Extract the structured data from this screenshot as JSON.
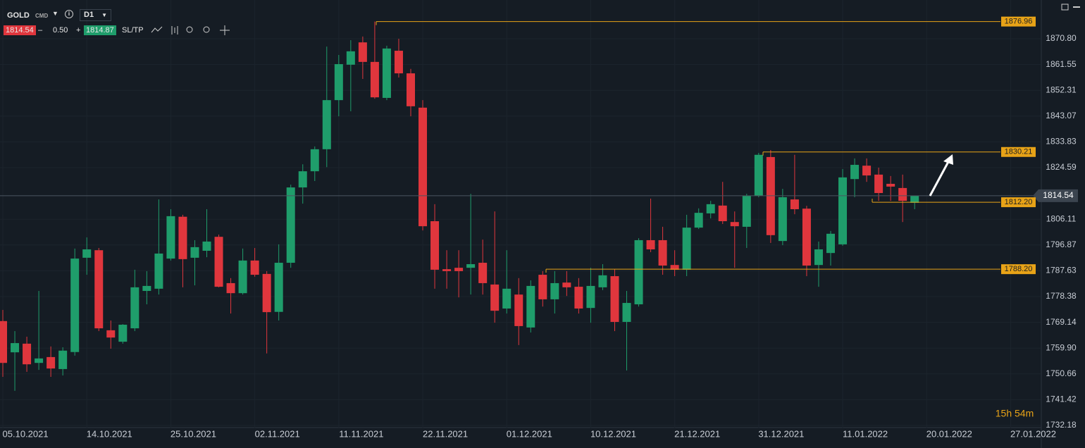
{
  "toolbar": {
    "symbol": "GOLD",
    "market": "CMD",
    "timeframe": "D1",
    "bid": "1814.54",
    "spread": "0.50",
    "ask": "1814.87",
    "minus": "–",
    "plus": "+",
    "sltp": "SL/TP"
  },
  "chart_data": {
    "type": "candlestick",
    "categories": [
      null,
      null,
      "05.10.2021",
      null,
      null,
      null,
      null,
      null,
      null,
      "14.10.2021",
      null,
      null,
      null,
      null,
      null,
      null,
      "25.10.2021",
      null,
      null,
      null,
      null,
      null,
      null,
      "02.11.2021",
      null,
      null,
      null,
      null,
      null,
      null,
      "11.11.2021",
      null,
      null,
      null,
      null,
      null,
      null,
      "22.11.2021",
      null,
      null,
      null,
      null,
      null,
      null,
      "01.12.2021",
      null,
      null,
      null,
      null,
      null,
      null,
      "10.12.2021",
      null,
      null,
      null,
      null,
      null,
      null,
      "21.12.2021",
      null,
      null,
      null,
      null,
      null,
      null,
      "31.12.2021",
      null,
      null,
      null,
      null,
      null,
      null,
      "11.01.2022",
      null,
      null,
      null,
      null,
      null,
      null,
      "20.01.2022",
      null,
      null,
      null,
      null,
      null,
      null,
      "27.01.2022"
    ],
    "open": [
      1769.6,
      1758.4,
      1761.5,
      1754.6,
      1756.7,
      1752.4,
      1758.5,
      1792.3,
      1795.0,
      1766.3,
      1762.2,
      1767.0,
      1780.4,
      1781.2,
      1792.0,
      1807.0,
      1792.3,
      1794.8,
      1799.8,
      1783.2,
      1779.6,
      1791.3,
      1786.5,
      1772.9,
      1790.5,
      1817.5,
      1823.3,
      1831.2,
      1848.8,
      1861.5,
      1869.5,
      1862.5,
      1849.6,
      1866.5,
      1858.4,
      1846.1,
      1805.4,
      1788.2,
      1788.7,
      1788.7,
      1790.5,
      1782.7,
      1774.1,
      1779.1,
      1767.3,
      1786.2,
      1777.4,
      1783.4,
      1781.9,
      1774.3,
      1781.7,
      1785.7,
      1769.3,
      1775.6,
      1798.6,
      1798.6,
      1789.7,
      1788.0,
      1803.1,
      1808.2,
      1811.0,
      1805.1,
      1803.4,
      1814.5,
      1828.4,
      1798.3,
      1813.2,
      1809.9,
      1789.7,
      1794.0,
      1797.1,
      1820.5,
      1825.3,
      1822.1,
      1818.8,
      1817.3,
      1812.0,
      null,
      null,
      null,
      null,
      null,
      null,
      null,
      null,
      null,
      null
    ],
    "high": [
      1773.6,
      1766.0,
      1764.0,
      1780.4,
      1760.5,
      1760.2,
      1795.6,
      1799.6,
      1795.8,
      1769.8,
      1768.5,
      1788.0,
      1787.5,
      1813.2,
      1809.7,
      1807.7,
      1798.6,
      1809.7,
      1800.6,
      1785.0,
      1795.6,
      1795.8,
      1787.5,
      1797.1,
      1818.5,
      1825.8,
      1832.2,
      1868.0,
      1865.0,
      1870.3,
      1871.6,
      1876.96,
      1868.3,
      1870.8,
      1860.0,
      1848.8,
      1811.5,
      1795.0,
      1795.0,
      1815.2,
      1798.8,
      1808.9,
      1795.0,
      1785.0,
      1784.2,
      1787.5,
      1787.5,
      1787.5,
      1785.0,
      1788.7,
      1790.0,
      1788.2,
      1780.4,
      1799.3,
      1813.5,
      1803.4,
      1795.0,
      1807.7,
      1810.0,
      1812.7,
      1819.5,
      1808.9,
      1815.2,
      1829.9,
      1830.9,
      1817.0,
      1829.2,
      1810.9,
      1798.1,
      1801.9,
      1824.1,
      1827.9,
      1827.9,
      1824.6,
      1821.6,
      1822.1,
      1814.5,
      null,
      null,
      null,
      null,
      null,
      null,
      null,
      null,
      null,
      null
    ],
    "low": [
      1749.6,
      1744.6,
      1751.4,
      1752.1,
      1749.6,
      1750.1,
      1757.2,
      1786.2,
      1766.0,
      1759.7,
      1761.5,
      1766.0,
      1775.6,
      1779.1,
      1791.3,
      1781.7,
      1782.4,
      1792.5,
      1781.7,
      1772.3,
      1779.1,
      1785.5,
      1758.0,
      1769.8,
      1788.7,
      1811.7,
      1819.8,
      1824.8,
      1843.0,
      1844.8,
      1856.4,
      1849.3,
      1848.8,
      1856.9,
      1843.0,
      1802.1,
      1781.2,
      1781.2,
      1778.1,
      1779.1,
      1779.1,
      1769.0,
      1772.3,
      1761.0,
      1765.5,
      1774.8,
      1772.3,
      1778.6,
      1772.3,
      1769.0,
      1780.7,
      1766.0,
      1751.9,
      1774.8,
      1794.3,
      1786.2,
      1785.7,
      1785.7,
      1802.6,
      1806.4,
      1804.4,
      1788.7,
      1795.8,
      1814.0,
      1797.6,
      1796.8,
      1807.9,
      1785.7,
      1781.9,
      1789.5,
      1796.6,
      1814.0,
      1819.5,
      1812.7,
      1812.7,
      1805.1,
      1809.7,
      null,
      null,
      null,
      null,
      null,
      null,
      null,
      null,
      null,
      null
    ],
    "close": [
      1754.6,
      1761.7,
      1754.1,
      1756.2,
      1752.6,
      1759.0,
      1792.0,
      1795.3,
      1767.0,
      1763.7,
      1768.3,
      1781.7,
      1782.2,
      1793.8,
      1807.2,
      1791.8,
      1796.1,
      1798.1,
      1781.9,
      1779.6,
      1791.3,
      1786.2,
      1772.8,
      1790.5,
      1817.5,
      1823.3,
      1831.2,
      1848.8,
      1861.7,
      1866.3,
      1862.5,
      1849.8,
      1867.3,
      1858.4,
      1846.6,
      1803.6,
      1788.0,
      1787.5,
      1787.5,
      1790.0,
      1783.2,
      1773.3,
      1781.2,
      1767.8,
      1782.2,
      1777.4,
      1783.2,
      1781.7,
      1774.1,
      1782.2,
      1786.0,
      1769.3,
      1776.1,
      1798.6,
      1795.3,
      1789.5,
      1788.0,
      1803.1,
      1808.4,
      1811.5,
      1805.4,
      1803.6,
      1814.5,
      1829.2,
      1800.4,
      1814.0,
      1809.7,
      1789.5,
      1795.3,
      1800.9,
      1821.1,
      1825.6,
      1821.8,
      1815.5,
      1817.8,
      1812.7,
      1814.5,
      null,
      null,
      null,
      null,
      null,
      null,
      null,
      null,
      null,
      null
    ],
    "up_color": "#1f9d6b",
    "down_color": "#e0363d",
    "ylim": [
      1731.17,
      1884.69
    ],
    "yticks": [
      {
        "value": 1870.8,
        "label": "1870.80"
      },
      {
        "value": 1861.55,
        "label": "1861.55"
      },
      {
        "value": 1852.31,
        "label": "1852.31"
      },
      {
        "value": 1843.07,
        "label": "1843.07"
      },
      {
        "value": 1833.83,
        "label": "1833.83"
      },
      {
        "value": 1824.59,
        "label": "1824.59"
      },
      {
        "value": 1806.11,
        "label": "1806.11"
      },
      {
        "value": 1796.87,
        "label": "1796.87"
      },
      {
        "value": 1787.63,
        "label": "1787.63"
      },
      {
        "value": 1778.38,
        "label": "1778.38"
      },
      {
        "value": 1769.14,
        "label": "1769.14"
      },
      {
        "value": 1759.9,
        "label": "1759.90"
      },
      {
        "value": 1750.66,
        "label": "1750.66"
      },
      {
        "value": 1741.42,
        "label": "1741.42"
      },
      {
        "value": 1732.18,
        "label": "1732.18"
      }
    ],
    "grid": true,
    "levels": [
      {
        "value": 1876.96,
        "label": "1876.96"
      },
      {
        "value": 1830.21,
        "label": "1830.21"
      },
      {
        "value": 1812.2,
        "label": "1812.20"
      },
      {
        "value": 1788.2,
        "label": "1788.20"
      }
    ],
    "level_color": "#e8a317",
    "current_price": {
      "value": 1814.54,
      "label": "1814.54"
    },
    "countdown": "15h 54m"
  }
}
